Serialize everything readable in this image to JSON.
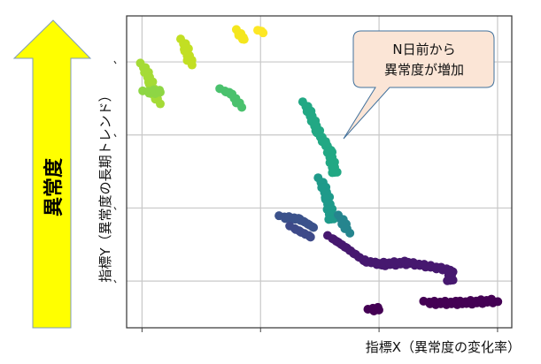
{
  "arrow": {
    "label": "異常度",
    "color": "#ffff00"
  },
  "callout": {
    "line1": "N日前から",
    "line2": "異常度が増加",
    "fill": "#fbe5d6",
    "stroke": "#41719c"
  },
  "chart_data": {
    "type": "scatter",
    "title": "",
    "xlabel": "指標X（異常度の変化率）",
    "ylabel": "指標Y（異常度の長期トレンド）",
    "xlim": [
      -0.13,
      3.12
    ],
    "ylim": [
      -0.64,
      3.63
    ],
    "xticks": [
      0,
      1,
      2,
      3
    ],
    "yticks": [
      0,
      1,
      2,
      3
    ],
    "grid": true,
    "colormap": "viridis",
    "series": [
      {
        "name": "yellow-a",
        "color": "#f4e61e",
        "points": [
          [
            0.82,
            3.42
          ],
          [
            0.83,
            3.36
          ],
          [
            0.86,
            3.3
          ]
        ]
      },
      {
        "name": "yellow-b",
        "color": "#fde725",
        "points": [
          [
            1.0,
            3.41
          ],
          [
            1.02,
            3.41
          ]
        ]
      },
      {
        "name": "yellow-green",
        "color": "#c2df23",
        "points": [
          [
            0.35,
            3.29
          ],
          [
            0.38,
            3.15
          ],
          [
            0.41,
            2.97
          ]
        ]
      },
      {
        "name": "lime",
        "color": "#a5db36",
        "points": [
          [
            0.01,
            2.96
          ],
          [
            0.08,
            2.7
          ],
          [
            0.13,
            2.45
          ]
        ]
      },
      {
        "name": "lime-b",
        "color": "#8ed645",
        "points": [
          [
            0.03,
            2.58
          ],
          [
            0.16,
            2.6
          ]
        ]
      },
      {
        "name": "green",
        "color": "#4ac16d",
        "points": [
          [
            0.68,
            2.61
          ],
          [
            0.76,
            2.56
          ],
          [
            0.83,
            2.39
          ]
        ]
      },
      {
        "name": "teal-a",
        "color": "#22a884",
        "points": [
          [
            1.38,
            2.43
          ],
          [
            1.49,
            2.03
          ],
          [
            1.58,
            1.79
          ],
          [
            1.63,
            1.46
          ]
        ]
      },
      {
        "name": "teal-b",
        "color": "#1f9a8a",
        "points": [
          [
            1.51,
            1.39
          ],
          [
            1.57,
            1.12
          ],
          [
            1.6,
            0.82
          ]
        ]
      },
      {
        "name": "teal-c",
        "color": "#25858e",
        "points": [
          [
            1.68,
            0.88
          ],
          [
            1.73,
            0.68
          ]
        ]
      },
      {
        "name": "blue",
        "color": "#3b528b",
        "points": [
          [
            1.18,
            0.87
          ],
          [
            1.33,
            0.85
          ],
          [
            1.45,
            0.73
          ]
        ]
      },
      {
        "name": "blue-b",
        "color": "#3e4a89",
        "points": [
          [
            1.27,
            0.73
          ],
          [
            1.43,
            0.6
          ]
        ]
      },
      {
        "name": "indigo",
        "color": "#46186f",
        "points": [
          [
            1.59,
            0.6
          ],
          [
            1.72,
            0.46
          ],
          [
            1.87,
            0.28
          ],
          [
            2.01,
            0.23
          ],
          [
            2.24,
            0.25
          ],
          [
            2.46,
            0.19
          ],
          [
            2.6,
            0.15
          ],
          [
            2.6,
            -0.02
          ]
        ]
      },
      {
        "name": "purple-a",
        "color": "#440154",
        "points": [
          [
            2.4,
            -0.3
          ],
          [
            2.69,
            -0.3
          ],
          [
            2.99,
            -0.27
          ]
        ]
      },
      {
        "name": "purple-b",
        "color": "#440154",
        "points": [
          [
            1.93,
            -0.41
          ],
          [
            1.99,
            -0.36
          ]
        ]
      }
    ]
  }
}
